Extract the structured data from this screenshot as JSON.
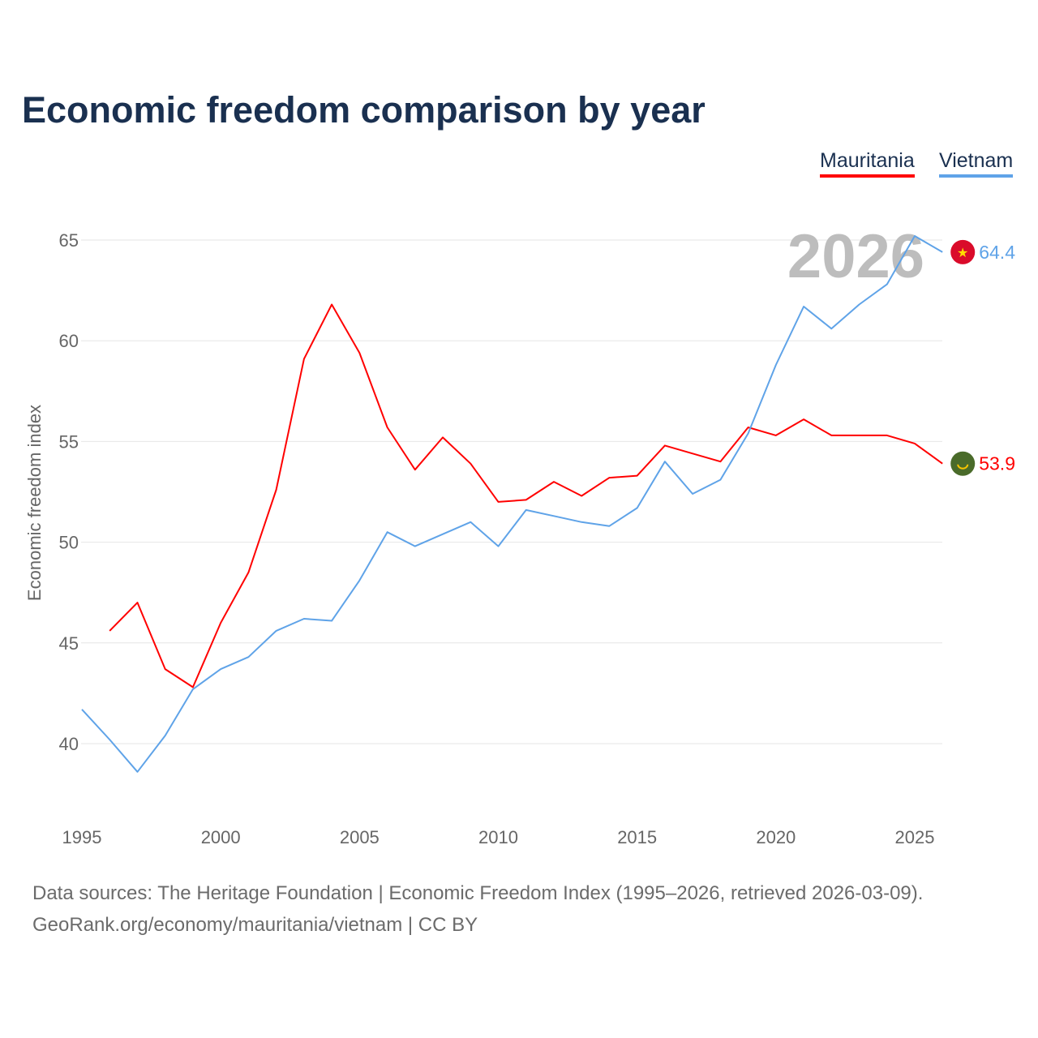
{
  "chart_data": {
    "type": "line",
    "title": "Economic freedom comparison by year",
    "xlabel": "",
    "ylabel": "Economic freedom index",
    "xlim": [
      1995,
      2026
    ],
    "ylim": [
      37,
      66
    ],
    "yticks": [
      40,
      45,
      50,
      55,
      60,
      65
    ],
    "xticks": [
      1995,
      2000,
      2005,
      2010,
      2015,
      2020,
      2025
    ],
    "grid": true,
    "legend_position": "top-right",
    "watermark_year": "2026",
    "series": [
      {
        "name": "Mauritania",
        "color": "#ff0000",
        "flag_bg": "#4a6b2a",
        "end_label": "53.9",
        "x": [
          1996,
          1997,
          1998,
          1999,
          2000,
          2001,
          2002,
          2003,
          2004,
          2005,
          2006,
          2007,
          2008,
          2009,
          2010,
          2011,
          2012,
          2013,
          2014,
          2015,
          2016,
          2017,
          2018,
          2019,
          2020,
          2021,
          2022,
          2023,
          2024,
          2025,
          2026
        ],
        "values": [
          45.6,
          47.0,
          43.7,
          42.8,
          46.0,
          48.5,
          52.6,
          59.1,
          61.8,
          59.4,
          55.7,
          53.6,
          55.2,
          53.9,
          52.0,
          52.1,
          53.0,
          52.3,
          53.2,
          53.3,
          54.8,
          54.4,
          54.0,
          55.7,
          55.3,
          56.1,
          55.3,
          55.3,
          55.3,
          54.9,
          53.9
        ]
      },
      {
        "name": "Vietnam",
        "color": "#5fa3e8",
        "flag_bg": "#da0b2a",
        "end_label": "64.4",
        "x": [
          1995,
          1996,
          1997,
          1998,
          1999,
          2000,
          2001,
          2002,
          2003,
          2004,
          2005,
          2006,
          2007,
          2008,
          2009,
          2010,
          2011,
          2012,
          2013,
          2014,
          2015,
          2016,
          2017,
          2018,
          2019,
          2020,
          2021,
          2022,
          2023,
          2024,
          2025,
          2026
        ],
        "values": [
          41.7,
          40.2,
          38.6,
          40.4,
          42.7,
          43.7,
          44.3,
          45.6,
          46.2,
          46.1,
          48.1,
          50.5,
          49.8,
          50.4,
          51.0,
          49.8,
          51.6,
          51.3,
          51.0,
          50.8,
          51.7,
          54.0,
          52.4,
          53.1,
          55.4,
          58.8,
          61.7,
          60.6,
          61.8,
          62.8,
          65.2,
          64.4
        ]
      }
    ]
  },
  "footer": {
    "line1": "Data sources: The Heritage Foundation | Economic Freedom Index (1995–2026, retrieved 2026-03-09).",
    "line2": "GeoRank.org/economy/mauritania/vietnam | CC BY"
  }
}
